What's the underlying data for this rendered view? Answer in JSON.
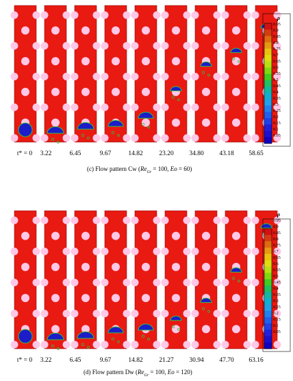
{
  "panels": [
    {
      "caption_prefix": "(c) Flow pattern Cw (",
      "caption_re": "Re",
      "caption_sub": "Gr",
      "caption_mid": " = 100, ",
      "caption_eo": "Eo",
      "caption_suffix": " = 60)",
      "time_label": "t* = 0",
      "times": [
        "3.22",
        "6.45",
        "9.67",
        "14.82",
        "23.20",
        "34.80",
        "43.18",
        "58.65"
      ],
      "bubble_fraction": [
        0.09,
        0.09,
        0.12,
        0.14,
        0.2,
        0.4,
        0.58,
        0.68,
        0.86
      ]
    },
    {
      "caption_prefix": "(d) Flow pattern Dw (",
      "caption_re": "Re",
      "caption_sub": "Gr",
      "caption_mid": " = 100, ",
      "caption_eo": "Eo",
      "caption_suffix": " = 120)",
      "time_label": "t* = 0",
      "times": [
        "3.22",
        "6.45",
        "9.67",
        "14.82",
        "21.27",
        "30.94",
        "47.70",
        "63.16"
      ],
      "bubble_fraction": [
        0.09,
        0.09,
        0.1,
        0.14,
        0.16,
        0.23,
        0.36,
        0.58,
        0.9
      ]
    }
  ],
  "legend": {
    "title": "ρ",
    "labels": [
      "0.95",
      "0.9",
      "0.85",
      "0.8",
      "0.75",
      "0.7",
      "0.65",
      "0.6",
      "0.55",
      "0.5",
      "0.45",
      "0.4",
      "0.35",
      "0.3",
      "0.25",
      "0.2",
      "0.15",
      "0.1",
      "0.05"
    ],
    "colors": [
      "#d41010",
      "#d83a10",
      "#e06a10",
      "#e89810",
      "#ecc010",
      "#e0dc10",
      "#b8e010",
      "#80d810",
      "#40cc20",
      "#20c060",
      "#10b8a0",
      "#10b0d0",
      "#20a0e8",
      "#2080f0",
      "#2060f0",
      "#2040e8",
      "#2020e0",
      "#1a10d0",
      "#1000c0"
    ]
  },
  "colors": {
    "liquid": "#e81a12",
    "gas": "#1c1cc8",
    "obstacle": "#ffc8e6",
    "interface": "#30c040"
  }
}
